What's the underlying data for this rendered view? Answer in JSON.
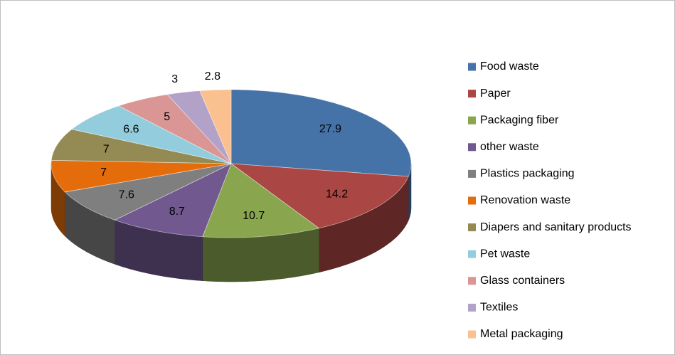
{
  "chart_data": {
    "type": "pie3d",
    "categories": [
      "Food waste",
      "Paper",
      "Packaging fiber",
      "other waste",
      "Plastics packaging",
      "Renovation waste",
      "Diapers and sanitary products",
      "Pet waste",
      "Glass containers",
      "Textiles",
      "Metal packaging"
    ],
    "values": [
      27.9,
      14.2,
      10.7,
      8.7,
      7.6,
      7,
      7,
      6.6,
      5,
      3,
      2.8
    ],
    "colors": [
      "#4572a7",
      "#aa4643",
      "#89a54e",
      "#71588f",
      "#7f7f7f",
      "#e46c0a",
      "#948a54",
      "#93cddd",
      "#d99694",
      "#b3a2c7",
      "#fac090"
    ],
    "legend": "right"
  }
}
